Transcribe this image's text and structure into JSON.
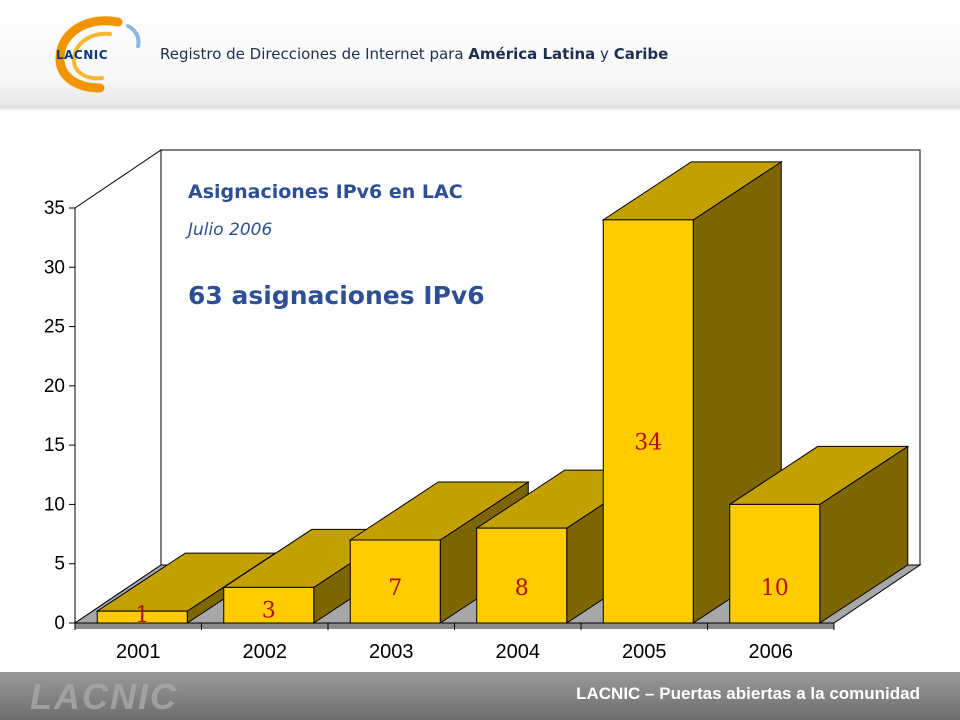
{
  "header": {
    "logo_text": "LACNIC",
    "tagline_regular": "Registro de Direcciones de Internet para ",
    "tagline_bold": "América Latina",
    "tagline_connector": " y ",
    "tagline_bold2": "Caribe"
  },
  "footer": {
    "watermark": "LACNIC",
    "text": "LACNIC – Puertas abiertas a la comunidad"
  },
  "colors": {
    "bar_front": "#ffcc00",
    "bar_top": "#c2a000",
    "bar_side": "#7d6600",
    "title": "#2e4f93"
  },
  "chart_data": {
    "type": "bar",
    "title": "Asignaciones IPv6 en LAC",
    "subtitle": "Julio 2006",
    "annotation": "63 asignaciones IPv6",
    "categories": [
      "2001",
      "2002",
      "2003",
      "2004",
      "2005",
      "2006"
    ],
    "values": [
      1,
      3,
      7,
      8,
      34,
      10
    ],
    "value_labels": [
      "1",
      "3",
      "7",
      "8",
      "34",
      "10"
    ],
    "ylim": [
      0,
      35
    ],
    "yticks": [
      "0",
      "5",
      "10",
      "15",
      "20",
      "25",
      "30",
      "35"
    ],
    "style": "3d",
    "grid": false,
    "legend": "none"
  }
}
